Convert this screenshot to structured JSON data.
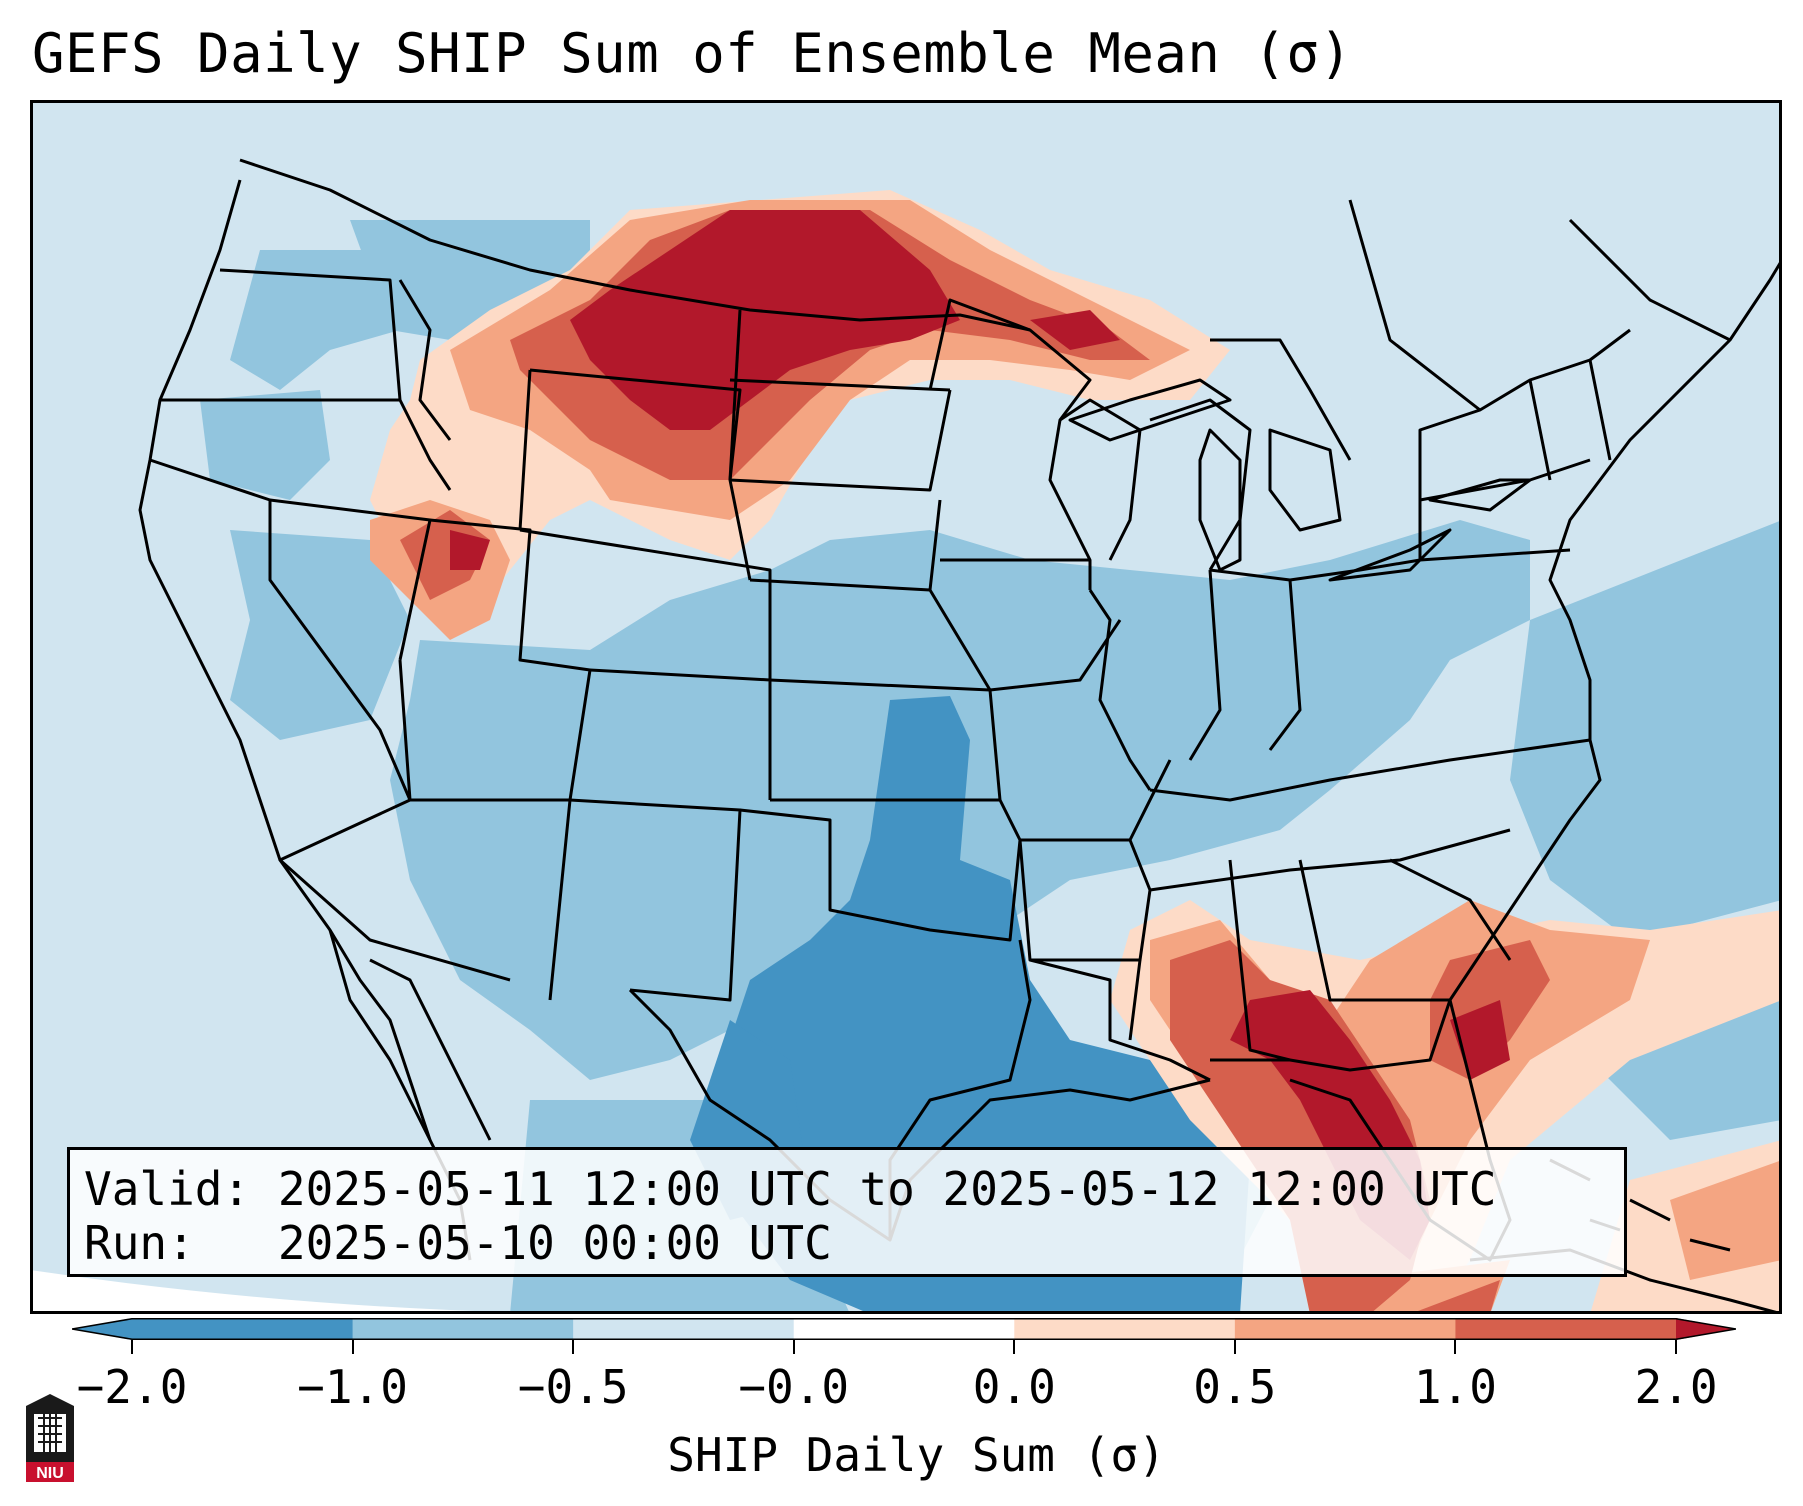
{
  "title": "GEFS Daily SHIP Sum of Ensemble Mean (σ)",
  "info": {
    "valid_label": "Valid:",
    "valid_value": "2025-05-11 12:00 UTC to 2025-05-12 12:00 UTC",
    "run_label": "Run:",
    "run_value": "2025-05-10 00:00 UTC"
  },
  "colorbar": {
    "label": "SHIP Daily Sum (σ)",
    "ticks": [
      "−2.0",
      "−1.0",
      "−0.5",
      "−0.0",
      "0.0",
      "0.5",
      "1.0",
      "2.0"
    ],
    "colors": [
      "#4393c3",
      "#92c5de",
      "#d1e5f0",
      "#ffffff",
      "#fddbc7",
      "#f4a582",
      "#d6604d",
      "#b2182b"
    ],
    "extend": "both"
  },
  "map": {
    "projection": "Lambert conformal, CONUS",
    "field": "SHIP daily sum standardized anomaly (σ)",
    "regions": [
      {
        "name": "Northern Plains / Montana / Dakotas",
        "value": "1.0 to 2.0"
      },
      {
        "name": "Upper Great Lakes",
        "value": "0.5 to 1.0"
      },
      {
        "name": "Idaho / Wyoming",
        "value": "0.5 to 2.0"
      },
      {
        "name": "Southeast / Florida",
        "value": "1.0 to 2.0"
      },
      {
        "name": "Texas / Gulf of Mexico",
        "value": "-2.0 to -1.0"
      },
      {
        "name": "Southern Plains / Midwest",
        "value": "-1.0 to -0.5"
      }
    ]
  },
  "logo": {
    "text": "NIU",
    "color": "#c8102e"
  }
}
